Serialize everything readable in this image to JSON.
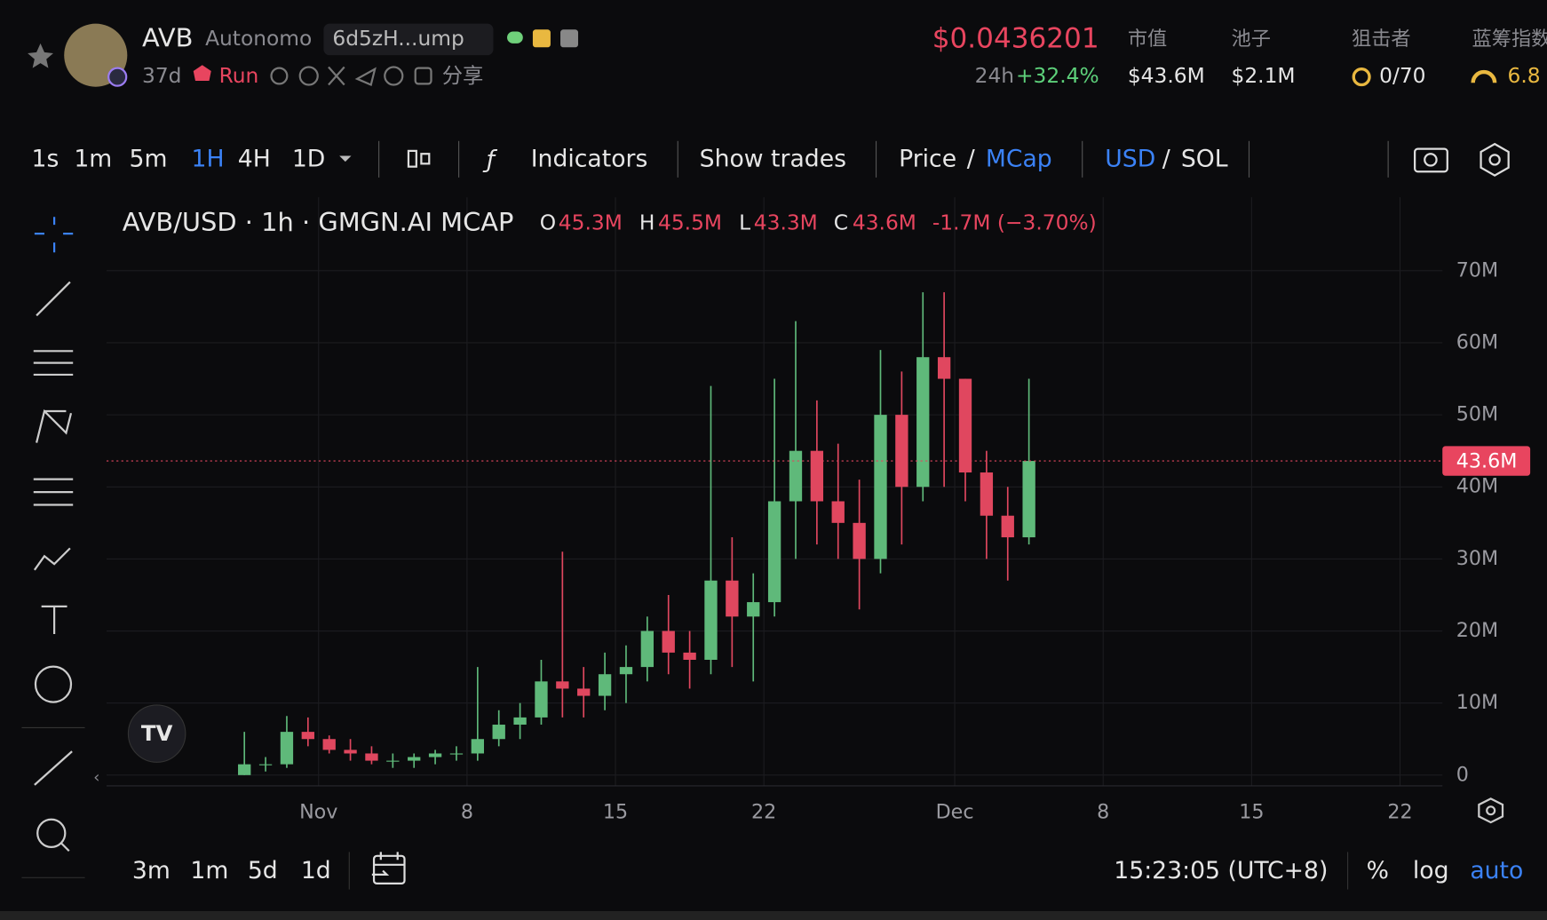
{
  "header": {
    "symbol": "AVB",
    "name": "Autonomo",
    "address": "6d5zH...ump",
    "age": "37d",
    "run": "Run",
    "share": "分享",
    "price": "$0.0436201",
    "change_label": "24h",
    "change": "+32.4%",
    "mcap_label": "市值",
    "mcap": "$43.6M",
    "pool_label": "池子",
    "pool": "$2.1M",
    "snipers_label": "狙击者",
    "snipers": "0/70",
    "bluechip_label": "蓝筹指数",
    "bluechip": "6.8"
  },
  "toolbar": {
    "intervals": [
      "1s",
      "1m",
      "5m",
      "1H",
      "4H",
      "1D"
    ],
    "indicators": "Indicators",
    "show_trades": "Show trades",
    "price": "Price",
    "sep1": "/",
    "mcap": "MCap",
    "usd": "USD",
    "sep2": "/",
    "sol": "SOL"
  },
  "legend": {
    "symbol": "AVB/USD · 1h · GMGN.AI MCAP",
    "o_label": "O",
    "o": "45.3M",
    "h_label": "H",
    "h": "45.5M",
    "l_label": "L",
    "l": "43.3M",
    "c_label": "C",
    "c": "43.6M",
    "change": "-1.7M (−3.70%)"
  },
  "chart_data": {
    "type": "candlestick",
    "x": [
      "10-28",
      "10-29",
      "10-30",
      "10-31",
      "11-01",
      "11-02",
      "11-03",
      "11-04",
      "11-05",
      "11-06",
      "11-07",
      "11-08",
      "11-09",
      "11-10",
      "11-11",
      "11-12",
      "11-13",
      "11-14",
      "11-15",
      "11-16",
      "11-17",
      "11-18",
      "11-19",
      "11-20",
      "11-21",
      "11-22",
      "11-23",
      "11-24",
      "11-25",
      "11-26",
      "11-27",
      "11-28",
      "11-29",
      "11-30",
      "12-01",
      "12-02",
      "12-03",
      "12-04"
    ],
    "open": [
      0,
      1.5,
      1.5,
      6,
      5,
      3.5,
      3,
      2,
      2,
      2.5,
      3,
      3,
      5,
      7,
      8,
      13,
      12,
      11,
      14,
      15,
      20,
      17,
      16,
      27,
      22,
      24,
      38,
      45,
      38,
      35,
      30,
      50,
      40,
      58,
      55,
      42,
      36,
      33
    ],
    "high": [
      6,
      2.5,
      8.2,
      8,
      5.5,
      5,
      4,
      3,
      3,
      3.5,
      4,
      15,
      9,
      10,
      16,
      31,
      15,
      17,
      18,
      22,
      25,
      20,
      54,
      33,
      28,
      55,
      63,
      52,
      46,
      41,
      59,
      56,
      67,
      67,
      55,
      45,
      40,
      55
    ],
    "low": [
      0,
      0.5,
      1,
      4,
      3,
      2,
      1.5,
      1,
      1,
      1.5,
      2,
      2,
      4,
      5,
      7,
      8,
      8,
      9,
      10,
      13,
      14,
      12,
      14,
      15,
      13,
      22,
      30,
      32,
      30,
      23,
      28,
      32,
      38,
      40,
      38,
      30,
      27,
      32
    ],
    "close": [
      1.5,
      1.5,
      6,
      5,
      3.5,
      3,
      2,
      2,
      2.5,
      3,
      3,
      5,
      7,
      8,
      13,
      12,
      11,
      14,
      15,
      20,
      17,
      16,
      27,
      22,
      24,
      38,
      45,
      38,
      35,
      30,
      50,
      40,
      58,
      55,
      42,
      36,
      33,
      43.6
    ],
    "up_color": "#5fb97a",
    "down_color": "#e0475f",
    "xlim": [
      "10-22",
      "12-24"
    ],
    "xticks": [
      {
        "value": "11-01",
        "label": "Nov"
      },
      {
        "value": "11-08",
        "label": "8"
      },
      {
        "value": "11-15",
        "label": "15"
      },
      {
        "value": "11-22",
        "label": "22"
      },
      {
        "value": "12-01",
        "label": "Dec"
      },
      {
        "value": "12-08",
        "label": "8"
      },
      {
        "value": "12-15",
        "label": "15"
      },
      {
        "value": "12-22",
        "label": "22"
      }
    ],
    "ylim": [
      -1.5,
      80.2
    ],
    "yticks": [
      {
        "value": 0,
        "label": "0"
      },
      {
        "value": 10,
        "label": "10M"
      },
      {
        "value": 20,
        "label": "20M"
      },
      {
        "value": 30,
        "label": "30M"
      },
      {
        "value": 40,
        "label": "40M"
      },
      {
        "value": 50,
        "label": "50M"
      },
      {
        "value": 60,
        "label": "60M"
      },
      {
        "value": 70,
        "label": "70M"
      }
    ],
    "last": {
      "value": 43.6,
      "label": "43.6M"
    },
    "grid": true
  },
  "bottom": {
    "ranges": [
      "3m",
      "1m",
      "5d",
      "1d"
    ],
    "time": "15:23:05 (UTC+8)",
    "percent": "%",
    "log": "log",
    "auto": "auto"
  }
}
